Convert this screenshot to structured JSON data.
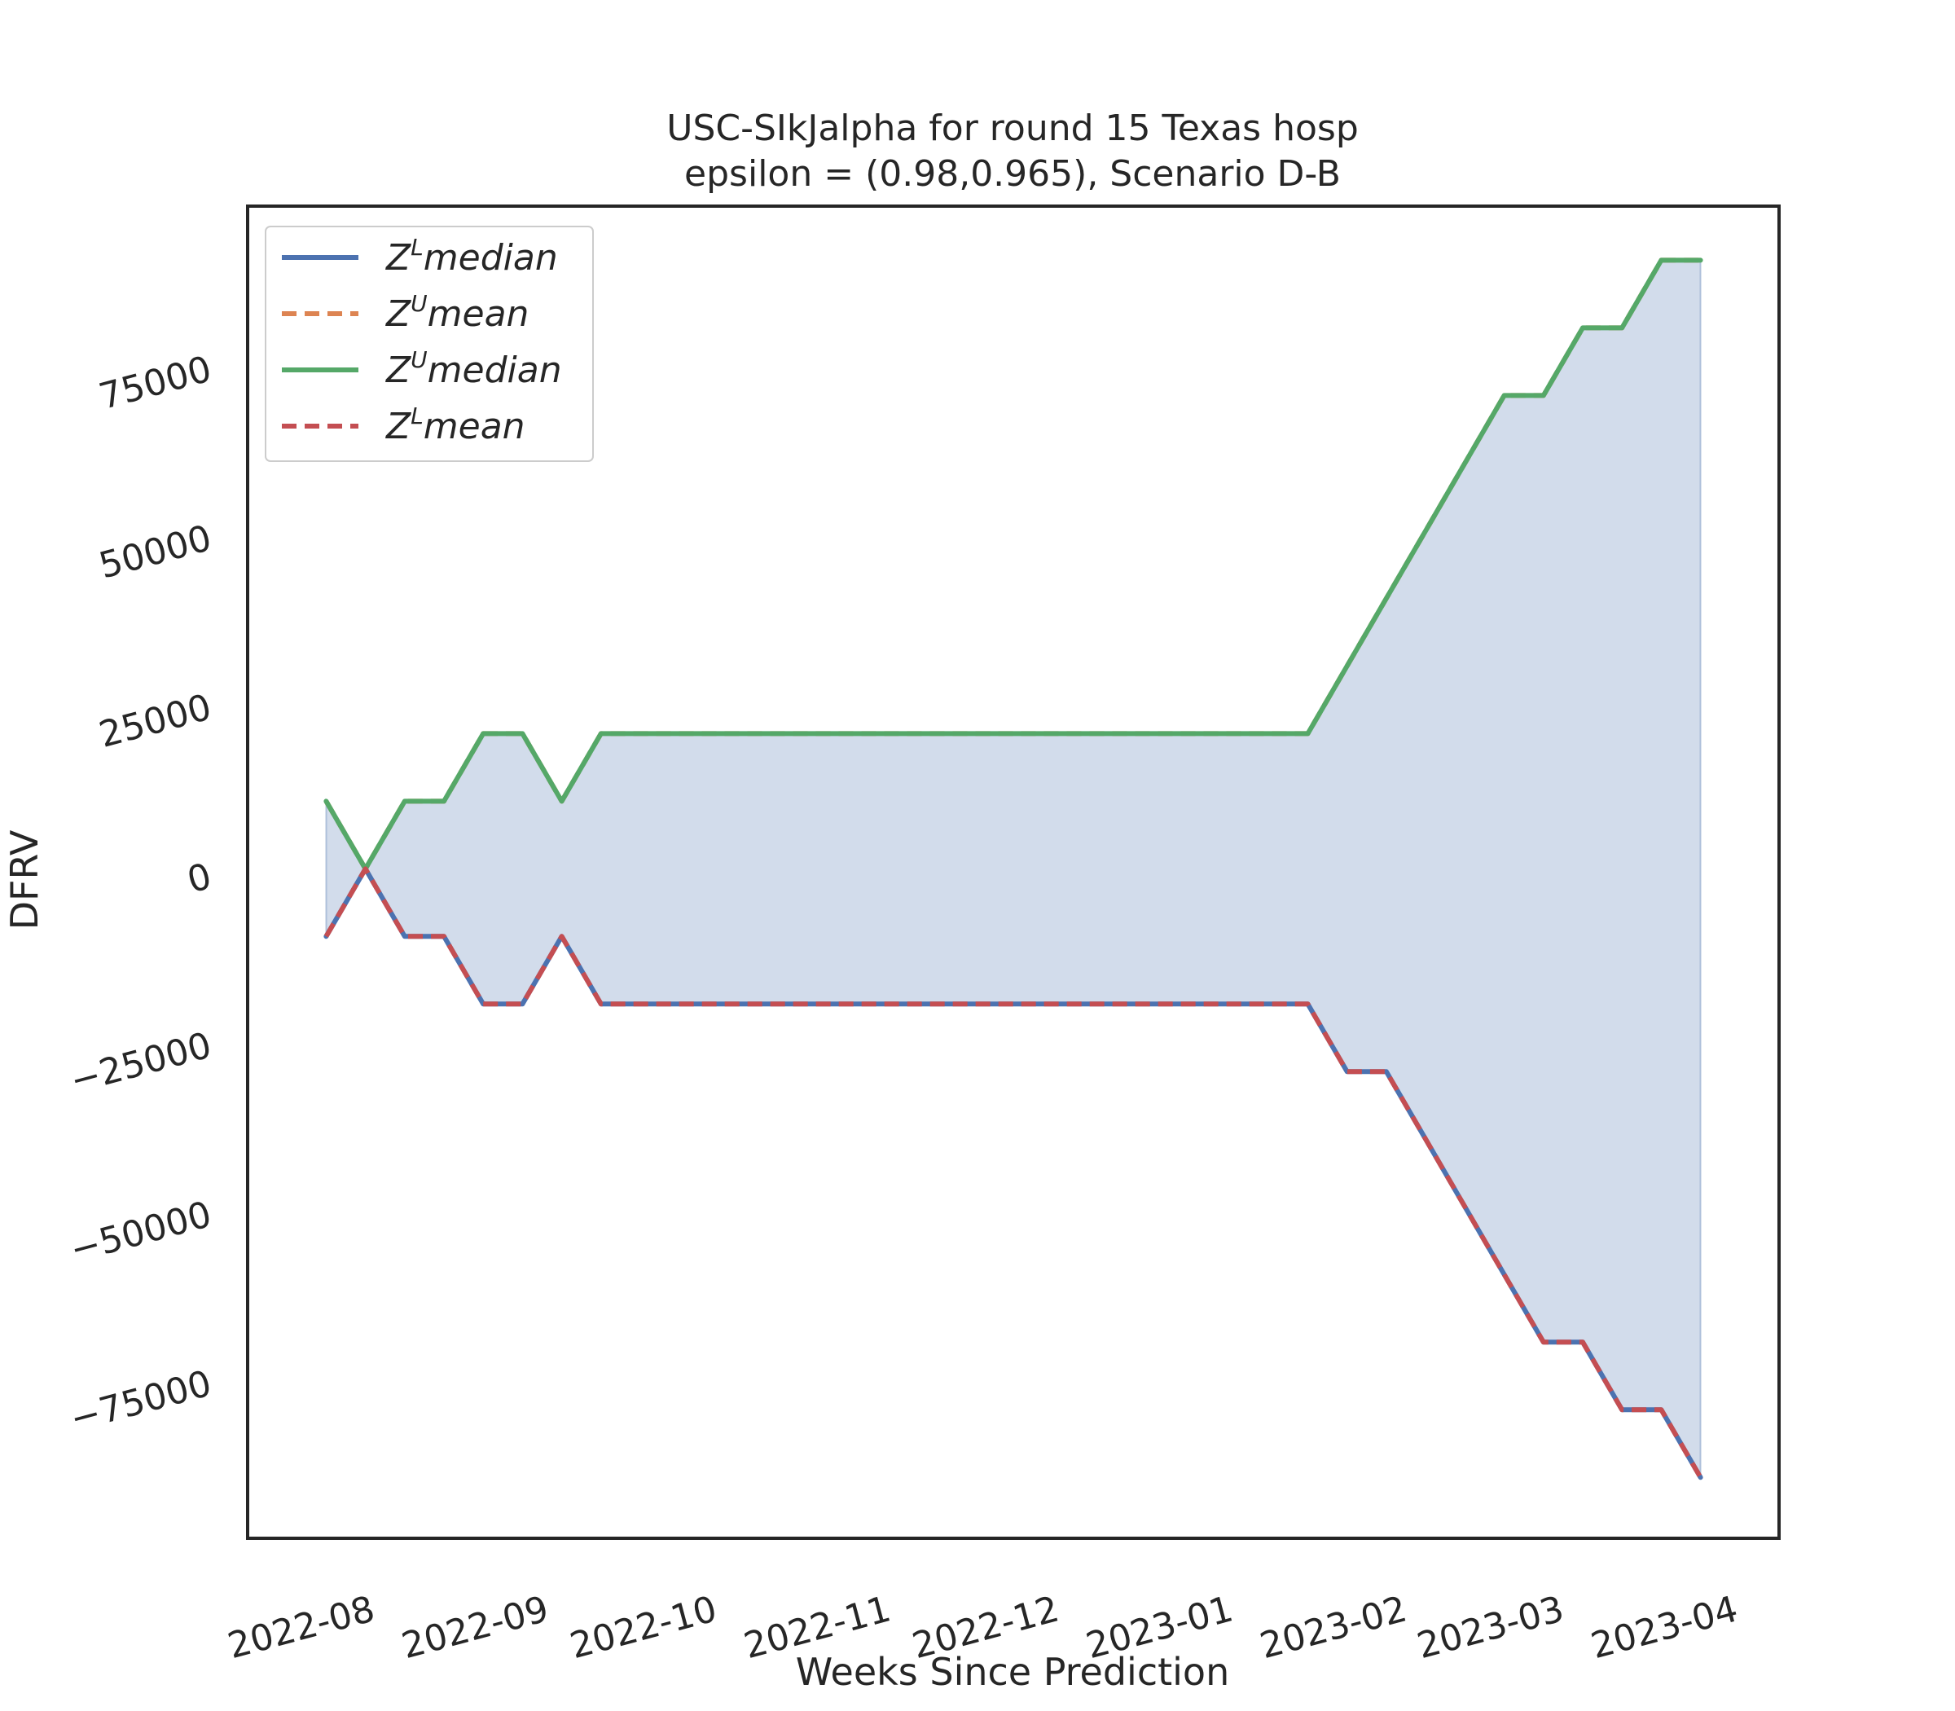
{
  "chart_data": {
    "type": "line",
    "title": "USC-SIkJalpha for round 15 Texas  hosp",
    "subtitle": "epsilon = (0.98,0.965), Scenario D-B",
    "xlabel": "Weeks Since Prediction",
    "ylabel": "DFRV",
    "x_ticks": [
      "2022-08",
      "2022-09",
      "2022-10",
      "2022-11",
      "2022-12",
      "2023-01",
      "2023-02",
      "2023-03",
      "2023-04"
    ],
    "y_ticks": [
      "−75000",
      "−50000",
      "−25000",
      "0",
      "25000",
      "50000",
      "75000"
    ],
    "y_tick_values": [
      -75000,
      -50000,
      -25000,
      0,
      25000,
      50000,
      75000
    ],
    "ylim": [
      -98000,
      99000
    ],
    "xlim": [
      "2022-07-09",
      "2023-04-08"
    ],
    "grid": false,
    "legend_position": "upper-left",
    "x": [
      "2022-07-23",
      "2022-07-30",
      "2022-08-06",
      "2022-08-13",
      "2022-08-20",
      "2022-08-27",
      "2022-09-03",
      "2022-09-10",
      "2022-09-17",
      "2022-09-24",
      "2022-10-01",
      "2022-10-08",
      "2022-10-15",
      "2022-10-22",
      "2022-10-29",
      "2022-11-05",
      "2022-11-12",
      "2022-11-19",
      "2022-11-26",
      "2022-12-03",
      "2022-12-10",
      "2022-12-17",
      "2022-12-24",
      "2022-12-31",
      "2023-01-07",
      "2023-01-14",
      "2023-01-21",
      "2023-01-28",
      "2023-02-04",
      "2023-02-11",
      "2023-02-18",
      "2023-02-25",
      "2023-03-04",
      "2023-03-11",
      "2023-03-18",
      "2023-03-25"
    ],
    "series": [
      {
        "name_base": "Z",
        "name_sup": "L",
        "name_rest": "median",
        "color": "#4c72b0",
        "style": "solid",
        "values": [
          -9000,
          1000,
          -9000,
          -9000,
          -19000,
          -19000,
          -9000,
          -19000,
          -19000,
          -19000,
          -19000,
          -19000,
          -19000,
          -19000,
          -19000,
          -19000,
          -19000,
          -19000,
          -19000,
          -19000,
          -19000,
          -19000,
          -19000,
          -19000,
          -19000,
          -19000,
          -29000,
          -29000,
          -39000,
          -49000,
          -59000,
          -69000,
          -69000,
          -79000,
          -79000,
          -89000
        ]
      },
      {
        "name_base": "Z",
        "name_sup": "U",
        "name_rest": "mean",
        "color": "#dd8452",
        "style": "dashed",
        "values": [
          11000,
          1000,
          11000,
          11000,
          21000,
          21000,
          11000,
          21000,
          21000,
          21000,
          21000,
          21000,
          21000,
          21000,
          21000,
          21000,
          21000,
          21000,
          21000,
          21000,
          21000,
          21000,
          21000,
          21000,
          21000,
          21000,
          31000,
          41000,
          51000,
          61000,
          71000,
          71000,
          81000,
          81000,
          91000,
          91000
        ]
      },
      {
        "name_base": "Z",
        "name_sup": "U",
        "name_rest": "median",
        "color": "#55a868",
        "style": "solid",
        "values": [
          11000,
          1000,
          11000,
          11000,
          21000,
          21000,
          11000,
          21000,
          21000,
          21000,
          21000,
          21000,
          21000,
          21000,
          21000,
          21000,
          21000,
          21000,
          21000,
          21000,
          21000,
          21000,
          21000,
          21000,
          21000,
          21000,
          31000,
          41000,
          51000,
          61000,
          71000,
          71000,
          81000,
          81000,
          91000,
          91000
        ]
      },
      {
        "name_base": "Z",
        "name_sup": "L",
        "name_rest": "mean",
        "color": "#c44e52",
        "style": "dashed",
        "values": [
          -9000,
          1000,
          -9000,
          -9000,
          -19000,
          -19000,
          -9000,
          -19000,
          -19000,
          -19000,
          -19000,
          -19000,
          -19000,
          -19000,
          -19000,
          -19000,
          -19000,
          -19000,
          -19000,
          -19000,
          -19000,
          -19000,
          -19000,
          -19000,
          -19000,
          -19000,
          -29000,
          -29000,
          -39000,
          -49000,
          -59000,
          -69000,
          -69000,
          -79000,
          -79000,
          -89000
        ]
      }
    ],
    "fill_between": {
      "color": "#4c72b0",
      "opacity": 0.25,
      "lower_series": 0,
      "upper_series": 2
    }
  }
}
